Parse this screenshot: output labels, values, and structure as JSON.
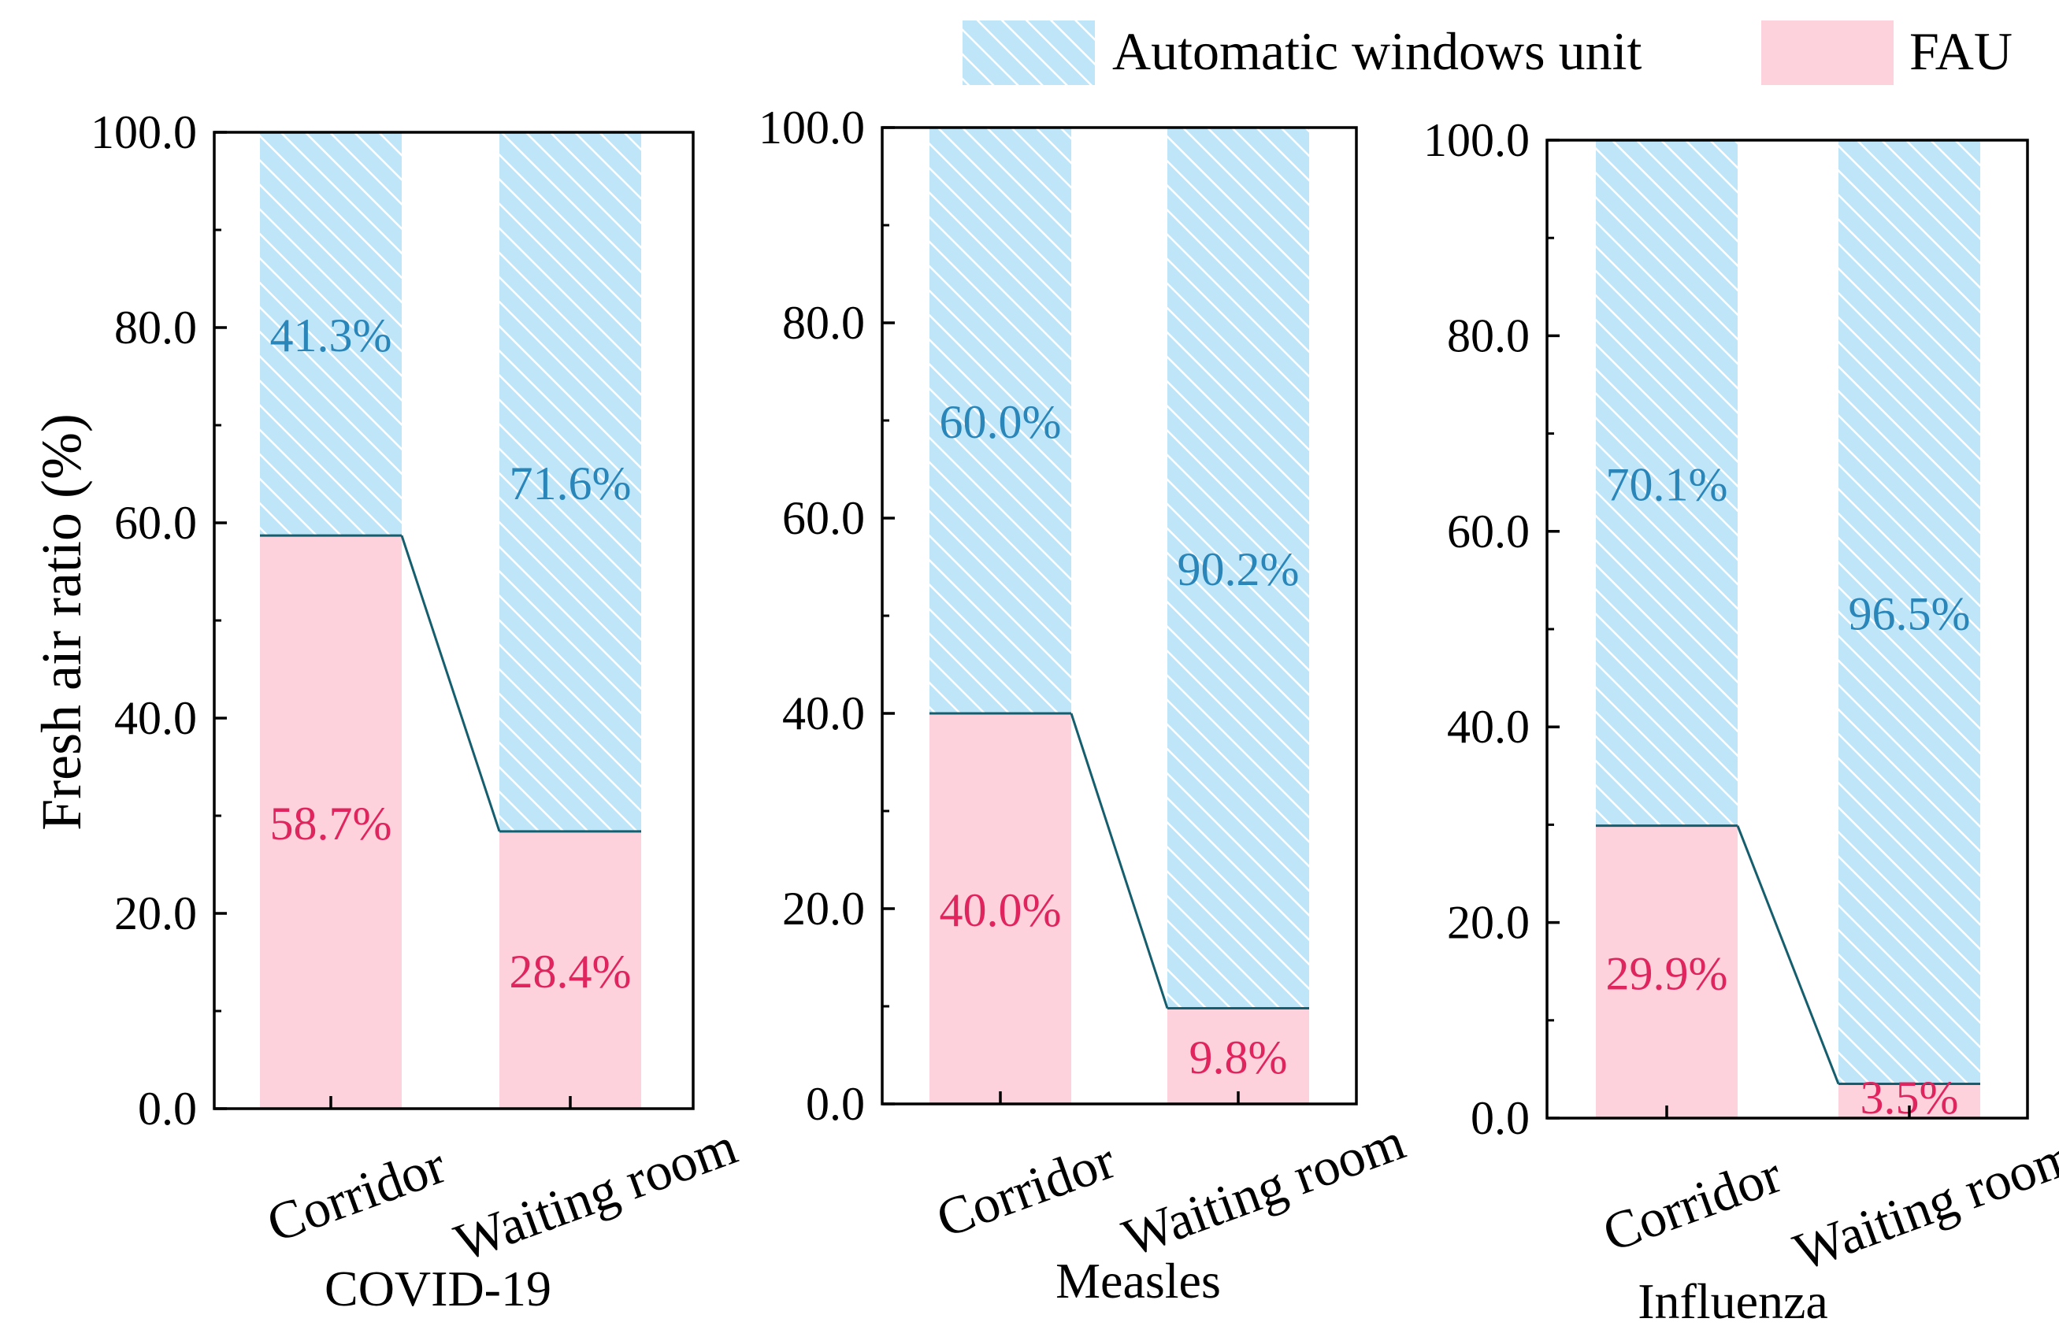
{
  "legend": [
    {
      "label": "Automatic windows unit",
      "color": "#bfe6f8",
      "hatch": "#ffffff"
    },
    {
      "label": "FAU",
      "color": "#fdd2dc"
    }
  ],
  "ylabel": "Fresh air ratio (%)",
  "colors": {
    "fau_text": "#e0255e",
    "auto_text": "#2a86b9",
    "connector": "#155e6e",
    "axis": "#000000"
  },
  "chart_data": [
    {
      "type": "bar",
      "title": "COVID-19",
      "ylabel": "Fresh air ratio (%)",
      "ylim": [
        0,
        100
      ],
      "yticks": [
        "0.0",
        "20.0",
        "40.0",
        "60.0",
        "80.0",
        "100.0"
      ],
      "categories": [
        "Corridor",
        "Waiting room"
      ],
      "series": [
        {
          "name": "FAU",
          "values": [
            58.7,
            28.4
          ],
          "labels": [
            "58.7%",
            "28.4%"
          ]
        },
        {
          "name": "Automatic windows unit",
          "values": [
            41.3,
            71.6
          ],
          "labels": [
            "41.3%",
            "71.6%"
          ]
        }
      ]
    },
    {
      "type": "bar",
      "title": "Measles",
      "ylim": [
        0,
        100
      ],
      "yticks": [
        "0.0",
        "20.0",
        "40.0",
        "60.0",
        "80.0",
        "100.0"
      ],
      "categories": [
        "Corridor",
        "Waiting room"
      ],
      "series": [
        {
          "name": "FAU",
          "values": [
            40.0,
            9.8
          ],
          "labels": [
            "40.0%",
            "9.8%"
          ]
        },
        {
          "name": "Automatic windows unit",
          "values": [
            60.0,
            90.2
          ],
          "labels": [
            "60.0%",
            "90.2%"
          ]
        }
      ]
    },
    {
      "type": "bar",
      "title": "Influenza",
      "ylim": [
        0,
        100
      ],
      "yticks": [
        "0.0",
        "20.0",
        "40.0",
        "60.0",
        "80.0",
        "100.0"
      ],
      "categories": [
        "Corridor",
        "Waiting room"
      ],
      "series": [
        {
          "name": "FAU",
          "values": [
            29.9,
            3.5
          ],
          "labels": [
            "29.9%",
            "3.5%"
          ]
        },
        {
          "name": "Automatic windows unit",
          "values": [
            70.1,
            96.5
          ],
          "labels": [
            "70.1%",
            "96.5%"
          ]
        }
      ]
    }
  ]
}
